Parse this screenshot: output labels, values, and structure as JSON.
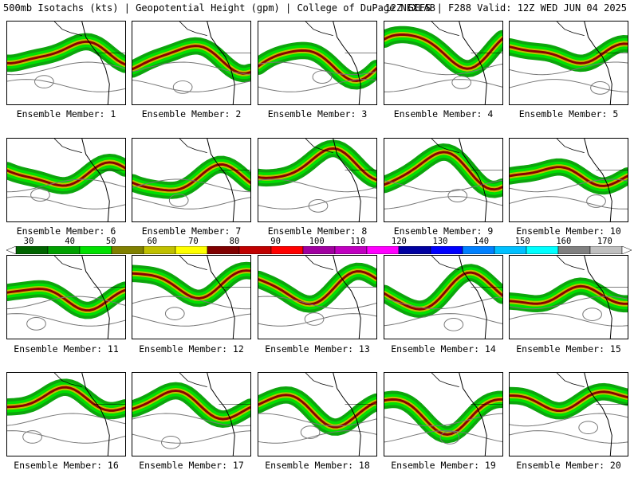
{
  "header": {
    "title_left": "500mb Isotachs (kts) | Geopotential Height (gpm) | College of DuPage NEXLAB",
    "title_right": "12Z GEFS | F288 Valid: 12Z WED JUN 04 2025"
  },
  "colorbar": {
    "labels": [
      "30",
      "40",
      "50",
      "60",
      "70",
      "80",
      "90",
      "100",
      "110",
      "120",
      "130",
      "140",
      "150",
      "160",
      "170"
    ],
    "colors": [
      "#006400",
      "#00a000",
      "#00e000",
      "#808000",
      "#c0c000",
      "#ffff00",
      "#800000",
      "#c00000",
      "#ff0000",
      "#a000a0",
      "#c000c0",
      "#ff00ff",
      "#0000a0",
      "#0000ff",
      "#0080ff",
      "#00c0ff",
      "#00ffff",
      "#808080",
      "#c0c0c0"
    ]
  },
  "members": [
    {
      "label": "Ensemble Member: 1"
    },
    {
      "label": "Ensemble Member: 2"
    },
    {
      "label": "Ensemble Member: 3"
    },
    {
      "label": "Ensemble Member: 4"
    },
    {
      "label": "Ensemble Member: 5"
    },
    {
      "label": "Ensemble Member: 6"
    },
    {
      "label": "Ensemble Member: 7"
    },
    {
      "label": "Ensemble Member: 8"
    },
    {
      "label": "Ensemble Member: 9"
    },
    {
      "label": "Ensemble Member: 10"
    },
    {
      "label": "Ensemble Member: 11"
    },
    {
      "label": "Ensemble Member: 12"
    },
    {
      "label": "Ensemble Member: 13"
    },
    {
      "label": "Ensemble Member: 14"
    },
    {
      "label": "Ensemble Member: 15"
    },
    {
      "label": "Ensemble Member: 16"
    },
    {
      "label": "Ensemble Member: 17"
    },
    {
      "label": "Ensemble Member: 18"
    },
    {
      "label": "Ensemble Member: 19"
    },
    {
      "label": "Ensemble Member: 20"
    }
  ]
}
